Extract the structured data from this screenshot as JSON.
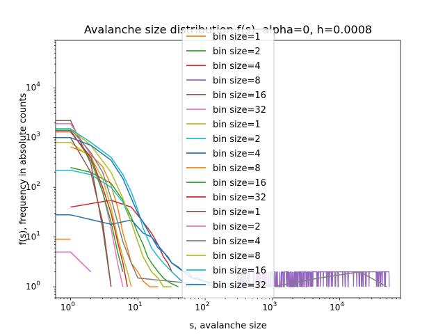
{
  "chart_data": {
    "type": "line",
    "title": "Avalanche size distribution f(s), alpha=0, h=0.0008",
    "xlabel": "s, avalanche size",
    "ylabel": "f(s), frequency in absolute counts",
    "xscale": "log",
    "yscale": "log",
    "xlim": [
      0.6,
      80000
    ],
    "ylim": [
      0.6,
      90000
    ],
    "x_ticks": [
      {
        "value": 1,
        "base": "10",
        "exp": "0"
      },
      {
        "value": 10,
        "base": "10",
        "exp": "1"
      },
      {
        "value": 100,
        "base": "10",
        "exp": "2"
      },
      {
        "value": 1000,
        "base": "10",
        "exp": "3"
      },
      {
        "value": 10000,
        "base": "10",
        "exp": "4"
      }
    ],
    "y_ticks": [
      {
        "value": 1,
        "base": "10",
        "exp": "0"
      },
      {
        "value": 10,
        "base": "10",
        "exp": "1"
      },
      {
        "value": 100,
        "base": "10",
        "exp": "2"
      },
      {
        "value": 1000,
        "base": "10",
        "exp": "3"
      },
      {
        "value": 10000,
        "base": "10",
        "exp": "4"
      }
    ],
    "grid": false,
    "legend_position": "top-center",
    "series": [
      {
        "name": "bin size=1",
        "color": "#ff7f0e",
        "x": [
          1,
          2,
          3,
          4,
          5,
          6,
          7,
          8,
          10,
          12,
          15,
          20
        ],
        "y": [
          650,
          450,
          260,
          110,
          40,
          12,
          6,
          3,
          2,
          1.3,
          1,
          1
        ]
      },
      {
        "name": "bin size=2",
        "color": "#2ca02c",
        "x": [
          1,
          2,
          4,
          6,
          8,
          10,
          12,
          14,
          16,
          20,
          24,
          30,
          40
        ],
        "y": [
          250,
          200,
          120,
          55,
          25,
          12,
          7,
          4,
          3,
          2,
          1.5,
          1.2,
          1
        ]
      },
      {
        "name": "bin size=4",
        "color": "#d62728",
        "x": [
          1,
          4,
          8,
          12,
          16,
          20,
          24,
          28,
          32,
          40,
          48,
          56,
          64
        ],
        "y": [
          40,
          55,
          40,
          20,
          12,
          7,
          4,
          3,
          2,
          1.5,
          1.2,
          1,
          1
        ]
      },
      {
        "name": "bin size=8",
        "color": "#9467bd",
        "x": [
          1,
          2
        ],
        "y": [
          5,
          2
        ]
      },
      {
        "name": "bin size=16",
        "color": "#8c564b",
        "x": [
          0.6,
          1,
          2,
          3,
          4
        ],
        "y": [
          2200,
          2200,
          300,
          15,
          1
        ]
      },
      {
        "name": "bin size=32",
        "color": "#e377c2",
        "x": [
          0.6,
          1,
          2,
          3,
          4,
          5,
          6
        ],
        "y": [
          1900,
          1900,
          450,
          80,
          15,
          3,
          1
        ]
      },
      {
        "name": "bin size=1",
        "color": "#bcbd22",
        "x": [
          0.6,
          1,
          2,
          3,
          4,
          5,
          6,
          7,
          8
        ],
        "y": [
          800,
          800,
          400,
          150,
          40,
          10,
          4,
          2,
          1
        ]
      },
      {
        "name": "bin size=2",
        "color": "#17becf",
        "x": [
          0.6,
          1,
          2,
          4,
          6,
          8,
          10,
          12,
          16,
          20,
          24,
          30
        ],
        "y": [
          220,
          220,
          180,
          100,
          50,
          20,
          8,
          4,
          2,
          1.5,
          1,
          1
        ]
      },
      {
        "name": "bin size=4",
        "color": "#1f77b4",
        "x": [
          0.6,
          1,
          4,
          8,
          12,
          16,
          20,
          24,
          28,
          32,
          40,
          48,
          56,
          64,
          72,
          80,
          96,
          112,
          128,
          160,
          200,
          240
        ],
        "y": [
          28,
          28,
          18,
          22,
          12,
          10,
          6,
          5,
          4,
          3,
          2.5,
          2,
          2,
          1.5,
          1.5,
          1.5,
          1.3,
          1.2,
          1,
          1,
          1,
          1
        ]
      },
      {
        "name": "bin size=8",
        "color": "#ff7f0e",
        "x": [
          0.6,
          1
        ],
        "y": [
          9,
          9
        ]
      },
      {
        "name": "bin size=16",
        "color": "#2ca02c",
        "x": [
          0.6,
          1,
          2,
          3,
          4,
          5,
          6
        ],
        "y": [
          1400,
          1400,
          350,
          80,
          20,
          5,
          2
        ]
      },
      {
        "name": "bin size=32",
        "color": "#d62728",
        "x": [
          0.6,
          1,
          2,
          3,
          4,
          5,
          6,
          7
        ],
        "y": [
          1300,
          1300,
          400,
          100,
          30,
          8,
          3,
          1
        ]
      },
      {
        "name": "bin size=1",
        "color": "#8c564b",
        "x": [
          0.6,
          1,
          2,
          3,
          4
        ],
        "y": [
          1000,
          1000,
          200,
          20,
          1
        ]
      },
      {
        "name": "bin size=2",
        "color": "#e377c2",
        "x": [
          0.6,
          1,
          2
        ],
        "y": [
          5,
          5,
          2
        ]
      },
      {
        "name": "bin size=4",
        "color": "#7f7f7f",
        "x": [
          0.6,
          1,
          2,
          3,
          4,
          5,
          6,
          8,
          10,
          200,
          1000,
          5000,
          20000,
          50000
        ],
        "y": [
          1500,
          1500,
          500,
          200,
          60,
          20,
          8,
          3,
          1.5,
          1,
          1,
          1.5,
          2,
          1
        ]
      },
      {
        "name": "bin size=8",
        "color": "#bcbd22",
        "x": [
          0.6,
          1,
          2,
          4,
          6,
          8,
          10,
          12,
          16,
          20,
          24,
          32
        ],
        "y": [
          1500,
          1500,
          700,
          200,
          60,
          20,
          8,
          4,
          2,
          1.5,
          1,
          1
        ]
      },
      {
        "name": "bin size=16",
        "color": "#17becf",
        "x": [
          0.6,
          1,
          2,
          4,
          6,
          8,
          10,
          12,
          16,
          20,
          24,
          32,
          40,
          48,
          56,
          64
        ],
        "y": [
          1500,
          1500,
          800,
          400,
          180,
          80,
          35,
          15,
          6,
          4,
          3,
          2,
          1.5,
          1.2,
          1,
          1
        ]
      },
      {
        "name": "bin size=32",
        "color": "#1f77b4",
        "x": [
          0.6,
          1,
          2,
          4,
          6,
          8,
          10,
          16,
          24,
          32,
          48,
          64,
          96,
          128,
          192,
          256
        ],
        "y": [
          1000,
          1000,
          700,
          350,
          150,
          60,
          30,
          10,
          5,
          3,
          2,
          1.5,
          1.3,
          1.2,
          1,
          1
        ]
      }
    ],
    "noise_series": {
      "color": "#9467bd",
      "x_range": [
        300,
        55000
      ],
      "y_values": [
        1,
        2
      ]
    }
  }
}
